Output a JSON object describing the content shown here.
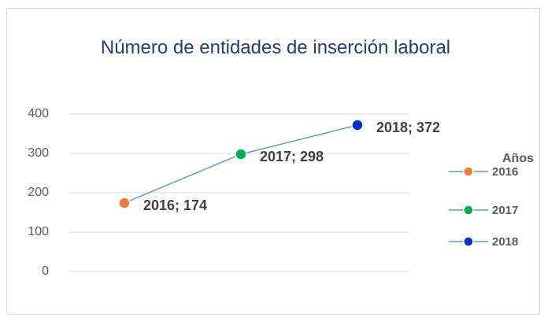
{
  "chart_data": {
    "type": "line",
    "title": "Número de entidades de inserción laboral",
    "categories": [
      "2016",
      "2017",
      "2018"
    ],
    "values": [
      174,
      298,
      372
    ],
    "value_labels": [
      "2016; 174",
      "2017; 298",
      "2018; 372"
    ],
    "line_color": "#5b9bd5",
    "point_colors": [
      "#ed7d31",
      "#00b050",
      "#0033cc"
    ],
    "legend_title": "Años",
    "legend": "right",
    "ylim": [
      0,
      400
    ],
    "yticks": [
      0,
      100,
      200,
      300,
      400
    ],
    "grid": true
  }
}
